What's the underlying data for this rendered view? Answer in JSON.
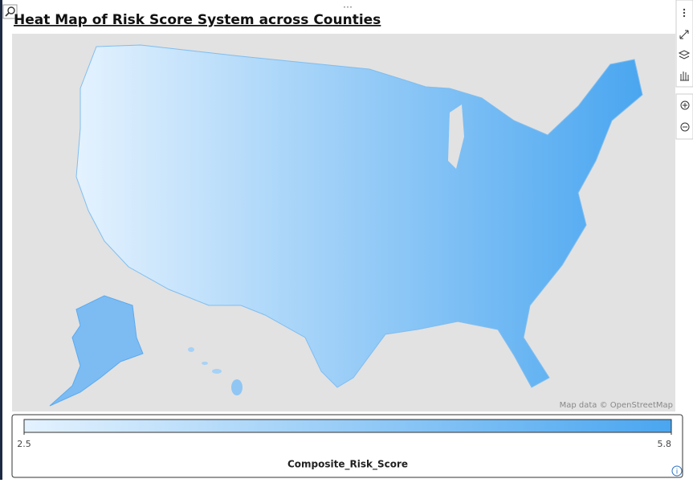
{
  "header": {
    "title": "Heat Map of Risk Score System across Counties"
  },
  "map": {
    "attribution": "Map data © OpenStreetMap"
  },
  "legend": {
    "title": "Composite_Risk_Score",
    "range": [
      2.5,
      5.8
    ],
    "ticks": [
      2.5,
      5.8
    ],
    "colors": [
      "#e4f2fe",
      "#4aa6f0"
    ]
  }
}
